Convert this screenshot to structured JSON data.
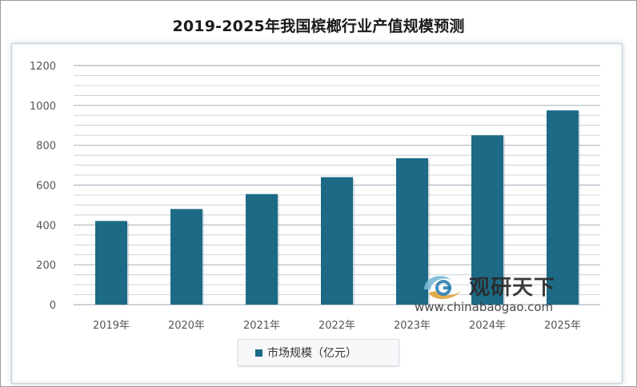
{
  "chart_data": {
    "type": "bar",
    "title": "2019-2025年我国槟榔行业产值规模预测",
    "categories": [
      "2019年",
      "2020年",
      "2021年",
      "2022年",
      "2023年",
      "2024年",
      "2025年"
    ],
    "series": [
      {
        "name": "市场规模（亿元）",
        "values": [
          420,
          480,
          555,
          640,
          735,
          850,
          975
        ],
        "color": "#1c6a85"
      }
    ],
    "yticks": [
      "1200",
      "1000",
      "800",
      "600",
      "400",
      "200",
      "0"
    ],
    "ylim": [
      0,
      1200
    ],
    "grid": true,
    "legend_position": "bottom"
  },
  "watermark": {
    "name": "观研天下",
    "url": "www.chinabaogao.com",
    "logo_icon": "chinabaogao-logo-icon"
  }
}
